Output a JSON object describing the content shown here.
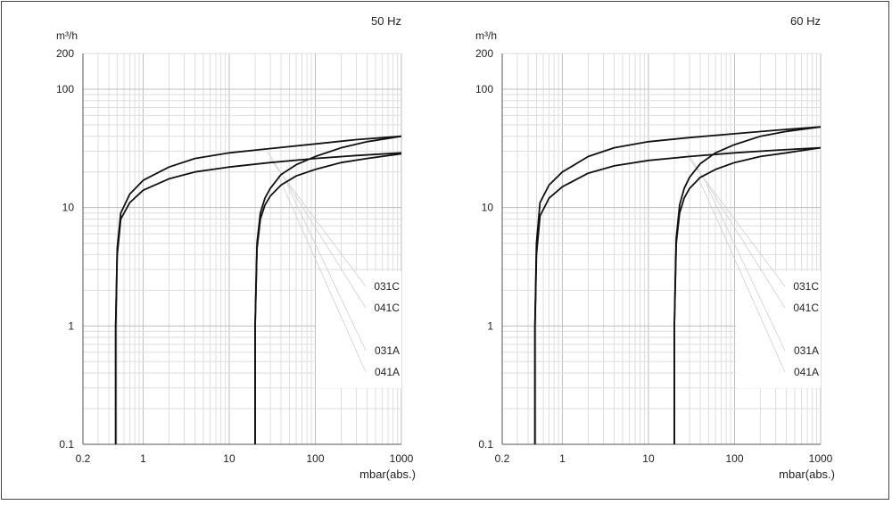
{
  "chart_data": [
    {
      "type": "line",
      "title": "50 Hz",
      "ylabel": "m³/h",
      "xlabel": "mbar(abs.)",
      "xscale": "log",
      "yscale": "log",
      "xlim": [
        0.2,
        1000
      ],
      "ylim": [
        0.1,
        200
      ],
      "grid": true,
      "xticks": [
        {
          "v": 0.2,
          "label": "0.2"
        },
        {
          "v": 1,
          "label": "1"
        },
        {
          "v": 10,
          "label": "10"
        },
        {
          "v": 100,
          "label": "100"
        },
        {
          "v": 1000,
          "label": "1000"
        }
      ],
      "yticks": [
        {
          "v": 0.1,
          "label": "0.1"
        },
        {
          "v": 1,
          "label": "1"
        },
        {
          "v": 10,
          "label": "10"
        },
        {
          "v": 100,
          "label": "100"
        },
        {
          "v": 200,
          "label": "200"
        }
      ],
      "legend_placement": "right",
      "legend": [
        "031C",
        "041C",
        "031A",
        "041A"
      ],
      "series": [
        {
          "name": "031C",
          "x": [
            0.48,
            0.48,
            0.5,
            0.55,
            0.7,
            1,
            2,
            4,
            10,
            30,
            100,
            300,
            1000
          ],
          "y": [
            0.1,
            1,
            4,
            8,
            11,
            14,
            17.5,
            20,
            22,
            24,
            26,
            27.5,
            29
          ]
        },
        {
          "name": "041C",
          "x": [
            0.48,
            0.48,
            0.5,
            0.55,
            0.7,
            1,
            2,
            4,
            10,
            30,
            100,
            300,
            1000
          ],
          "y": [
            0.1,
            1,
            4.5,
            9,
            13,
            17,
            22,
            26,
            29,
            31.5,
            34.5,
            37.5,
            40
          ]
        },
        {
          "name": "031A",
          "x": [
            20,
            20,
            21,
            23,
            26,
            30,
            40,
            60,
            100,
            200,
            400,
            1000
          ],
          "y": [
            0.1,
            1,
            4.5,
            8,
            10.5,
            12.5,
            15.5,
            18.5,
            21,
            24,
            26,
            28.5
          ]
        },
        {
          "name": "041A",
          "x": [
            20,
            20,
            21,
            23,
            26,
            30,
            40,
            60,
            100,
            200,
            400,
            1000
          ],
          "y": [
            0.1,
            1,
            5,
            9,
            12,
            14.5,
            19,
            23,
            27,
            32,
            36,
            40
          ]
        }
      ]
    },
    {
      "type": "line",
      "title": "60 Hz",
      "ylabel": "m³/h",
      "xlabel": "mbar(abs.)",
      "xscale": "log",
      "yscale": "log",
      "xlim": [
        0.2,
        1000
      ],
      "ylim": [
        0.1,
        200
      ],
      "grid": true,
      "xticks": [
        {
          "v": 0.2,
          "label": "0.2"
        },
        {
          "v": 1,
          "label": "1"
        },
        {
          "v": 10,
          "label": "10"
        },
        {
          "v": 100,
          "label": "100"
        },
        {
          "v": 1000,
          "label": "1000"
        }
      ],
      "yticks": [
        {
          "v": 0.1,
          "label": "0.1"
        },
        {
          "v": 1,
          "label": "1"
        },
        {
          "v": 10,
          "label": "10"
        },
        {
          "v": 100,
          "label": "100"
        },
        {
          "v": 200,
          "label": "200"
        }
      ],
      "legend_placement": "right",
      "legend": [
        "031C",
        "041C",
        "031A",
        "041A"
      ],
      "series": [
        {
          "name": "031C",
          "x": [
            0.48,
            0.48,
            0.5,
            0.55,
            0.7,
            1,
            2,
            4,
            10,
            30,
            100,
            300,
            1000
          ],
          "y": [
            0.1,
            1,
            4,
            8.5,
            12,
            15,
            19.5,
            22.5,
            25,
            27,
            29,
            30.5,
            32
          ]
        },
        {
          "name": "041C",
          "x": [
            0.48,
            0.48,
            0.5,
            0.55,
            0.7,
            1,
            2,
            4,
            10,
            30,
            100,
            300,
            1000
          ],
          "y": [
            0.1,
            1,
            5,
            11,
            15.5,
            20,
            27,
            32,
            36,
            39,
            42,
            45,
            48
          ]
        },
        {
          "name": "031A",
          "x": [
            20,
            20,
            21,
            23,
            26,
            30,
            40,
            60,
            100,
            200,
            400,
            1000
          ],
          "y": [
            0.1,
            1,
            5,
            9,
            12,
            14.5,
            18,
            21,
            24,
            27,
            29,
            32
          ]
        },
        {
          "name": "041A",
          "x": [
            20,
            20,
            21,
            23,
            26,
            30,
            40,
            60,
            100,
            200,
            400,
            1000
          ],
          "y": [
            0.1,
            1,
            5.5,
            10.5,
            14.5,
            18,
            23.5,
            29,
            34,
            40,
            44,
            48
          ]
        }
      ]
    }
  ]
}
